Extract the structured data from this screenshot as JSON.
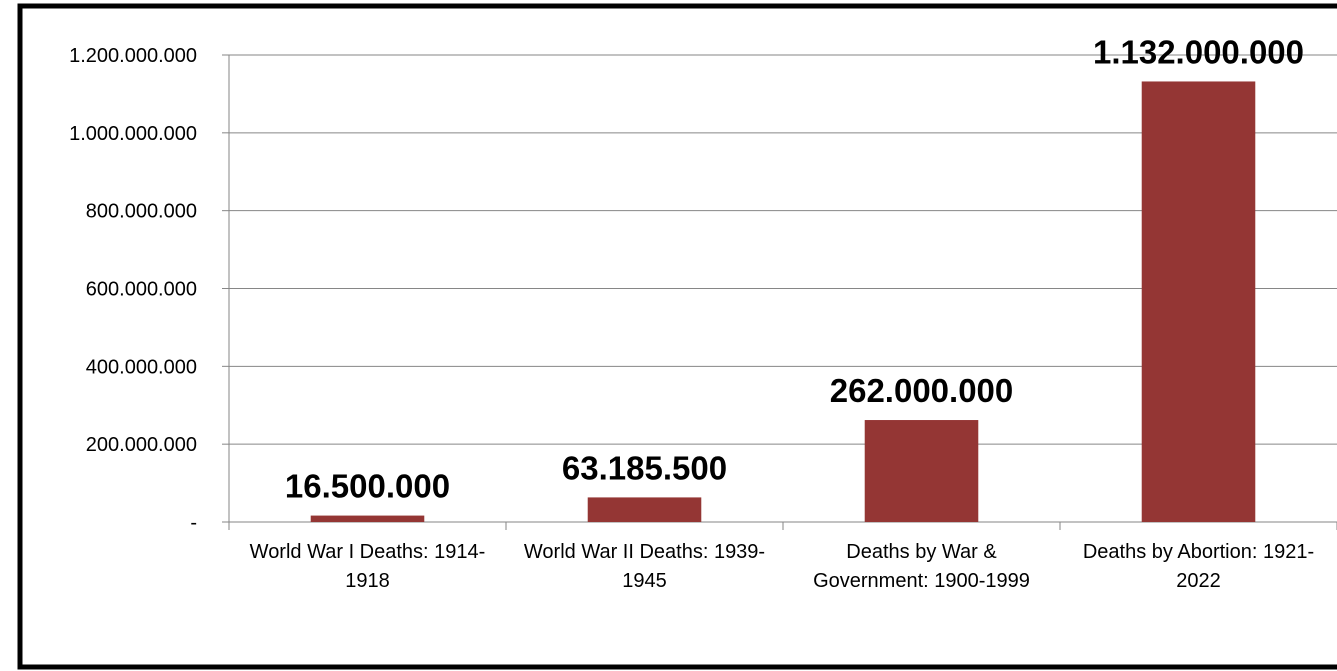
{
  "chart_data": {
    "type": "bar",
    "categories": [
      "World War I Deaths: 1914-1918",
      "World War II Deaths: 1939-1945",
      "Deaths by War & Government: 1900-1999",
      "Deaths by Abortion: 1921-2022"
    ],
    "values": [
      16500000,
      63185500,
      262000000,
      1132000000
    ],
    "value_labels": [
      "16.500.000",
      "63.185.500",
      "262.000.000",
      "1.132.000.000"
    ],
    "color": "#943634",
    "ylim": [
      0,
      1200000000
    ],
    "yticks": [
      {
        "value": 0,
        "label": "-"
      },
      {
        "value": 200000000,
        "label": "200.000.000"
      },
      {
        "value": 400000000,
        "label": "400.000.000"
      },
      {
        "value": 600000000,
        "label": "600.000.000"
      },
      {
        "value": 800000000,
        "label": "800.000.000"
      },
      {
        "value": 1000000000,
        "label": "1.000.000.000"
      },
      {
        "value": 1200000000,
        "label": "1.200.000.000"
      }
    ],
    "grid": true
  }
}
